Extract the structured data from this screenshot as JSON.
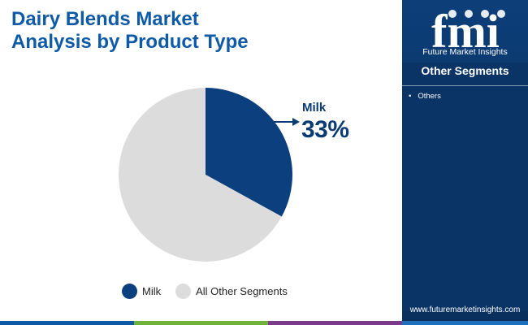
{
  "title": {
    "line1": "Dairy Blends Market",
    "line2": "Analysis by Product Type"
  },
  "colors": {
    "title": "#0e5aa7",
    "milk": "#0b3f7e",
    "other": "#dcdcdc",
    "callout": "#0b3b73",
    "sidebar": "#0a3366",
    "bottom_bar": [
      "#0e5aa7",
      "#6fb23a",
      "#7b3a8c",
      "#1f6fbf"
    ]
  },
  "chart_data": {
    "type": "pie",
    "slices": [
      {
        "label": "Milk",
        "value": 33
      },
      {
        "label": "All Other Segments",
        "value": 67
      }
    ],
    "callout": {
      "label": "Milk",
      "value": "33%"
    },
    "legend": [
      "Milk",
      "All Other Segments"
    ]
  },
  "sidebar": {
    "logo_text": "fmi",
    "logo_subtitle": "Future Market Insights",
    "segments_title": "Other Segments",
    "segments": [
      "Others"
    ],
    "website": "www.futuremarketinsights.com"
  }
}
